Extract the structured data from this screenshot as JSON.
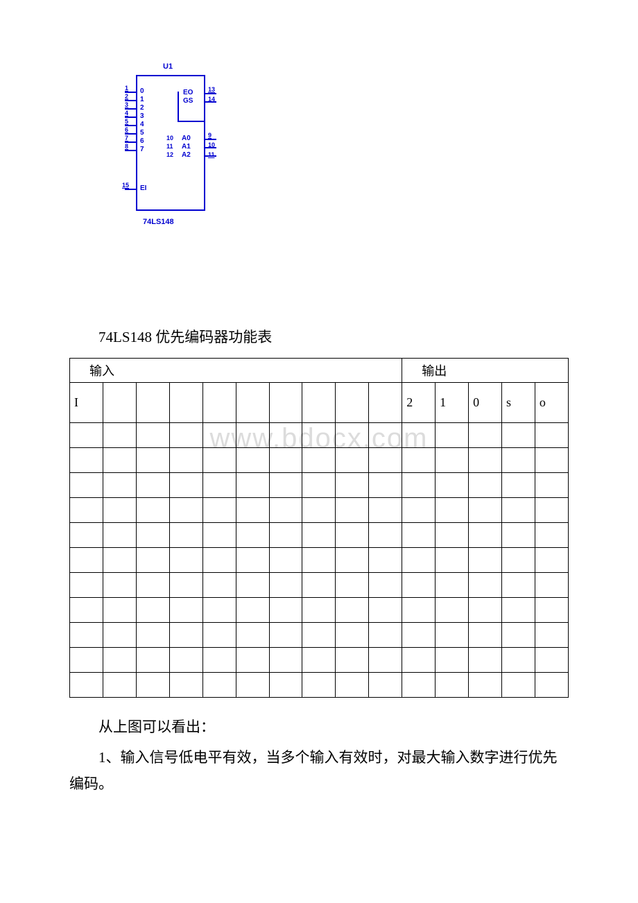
{
  "diagram": {
    "ref": "U1",
    "part": "74LS148",
    "left_pins": [
      {
        "num": "1",
        "label": "0"
      },
      {
        "num": "2",
        "label": "1"
      },
      {
        "num": "3",
        "label": "2"
      },
      {
        "num": "4",
        "label": "3"
      },
      {
        "num": "5",
        "label": "4"
      },
      {
        "num": "6",
        "label": "5"
      },
      {
        "num": "7",
        "label": "6"
      },
      {
        "num": "8",
        "label": "7"
      }
    ],
    "ei_pin": {
      "num": "15",
      "label": "EI"
    },
    "right_top": [
      {
        "num": "13",
        "label": "EO"
      },
      {
        "num": "14",
        "label": "GS"
      }
    ],
    "right_bottom": [
      {
        "numA": "10",
        "numB": "9",
        "label": "A0"
      },
      {
        "numA": "11",
        "numB": "10",
        "label": "A1"
      },
      {
        "numA": "12",
        "numB": "11",
        "label": "A2"
      }
    ],
    "color": "#0000d0"
  },
  "caption": "74LS148 优先编码器功能表",
  "table": {
    "group_headers": [
      "输入",
      "输出"
    ],
    "col_spans": [
      10,
      5
    ],
    "header_row": [
      "I",
      "",
      "",
      "",
      "",
      "",
      "",
      "",
      "",
      "",
      "2",
      "1",
      "0",
      "s",
      "o"
    ],
    "body_row_count": 11,
    "col_count": 15
  },
  "paragraphs": [
    "从上图可以看出：",
    "1、输入信号低电平有效，当多个输入有效时，对最大输入数字进行优先编码。"
  ],
  "watermark": "www.bdocx.com",
  "style": {
    "page_bg": "#ffffff",
    "text_color": "#000000",
    "diagram_color": "#0000d0",
    "watermark_color": "#dcdcdc",
    "body_font_size_pt": 16,
    "table_border_color": "#000000"
  }
}
